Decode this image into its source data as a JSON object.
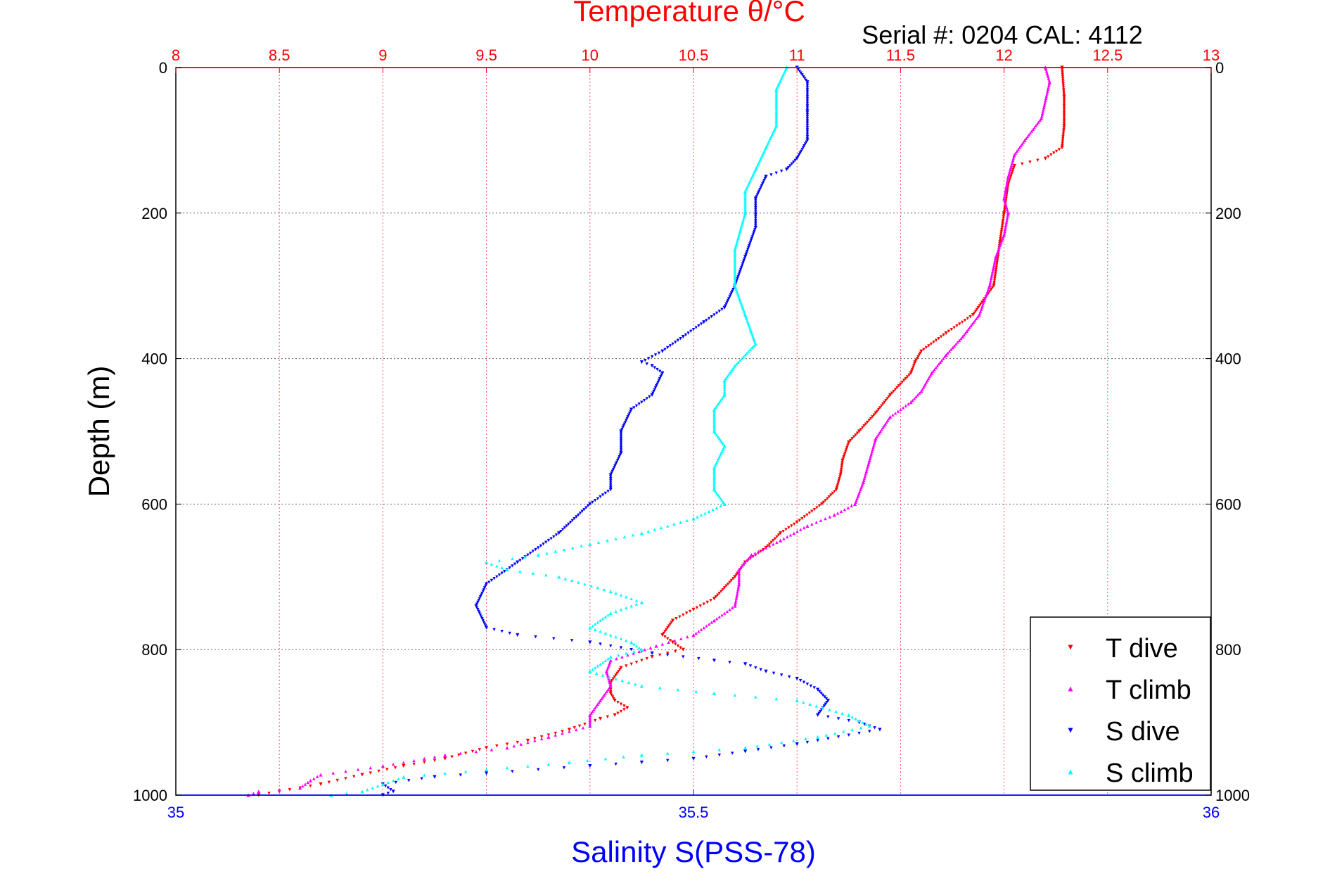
{
  "chart_data": {
    "type": "scatter",
    "title": "Temperature θ/°C",
    "annotation": "Serial #: 0204  CAL: 4112",
    "ylabel": "Depth (m)",
    "xlabel": "Salinity S(PSS-78)",
    "y_axis": {
      "range": [
        0,
        1000
      ],
      "reversed": true,
      "ticks": [
        "0",
        "200",
        "400",
        "600",
        "800",
        "1000"
      ],
      "tick_values": [
        0,
        200,
        400,
        600,
        800,
        1000
      ]
    },
    "x_axis_temperature": {
      "range": [
        8,
        13
      ],
      "position": "top",
      "ticks": [
        "8",
        "8.5",
        "9",
        "9.5",
        "10",
        "10.5",
        "11",
        "11.5",
        "12",
        "12.5",
        "13"
      ],
      "tick_values": [
        8,
        8.5,
        9,
        9.5,
        10,
        10.5,
        11,
        11.5,
        12,
        12.5,
        13
      ],
      "color": "#ff0000"
    },
    "x_axis_salinity": {
      "range": [
        35,
        36
      ],
      "position": "bottom",
      "ticks": [
        "35",
        "35.5",
        "36"
      ],
      "tick_values": [
        35,
        35.5,
        36
      ],
      "color": "#0000ff"
    },
    "grid": true,
    "legend_position": "bottom-right",
    "series": [
      {
        "name": "T dive",
        "color": "#ff0000",
        "axis": "temperature",
        "marker": "triangle-down",
        "points": [
          [
            12.28,
            0
          ],
          [
            12.29,
            40
          ],
          [
            12.29,
            80
          ],
          [
            12.28,
            110
          ],
          [
            12.2,
            125
          ],
          [
            12.05,
            135
          ],
          [
            12.02,
            160
          ],
          [
            12.0,
            200
          ],
          [
            11.98,
            240
          ],
          [
            11.97,
            260
          ],
          [
            11.95,
            300
          ],
          [
            11.85,
            340
          ],
          [
            11.72,
            365
          ],
          [
            11.6,
            390
          ],
          [
            11.57,
            405
          ],
          [
            11.55,
            420
          ],
          [
            11.45,
            450
          ],
          [
            11.38,
            475
          ],
          [
            11.3,
            500
          ],
          [
            11.25,
            515
          ],
          [
            11.22,
            540
          ],
          [
            11.21,
            560
          ],
          [
            11.19,
            580
          ],
          [
            11.12,
            600
          ],
          [
            11.0,
            625
          ],
          [
            10.92,
            640
          ],
          [
            10.85,
            660
          ],
          [
            10.75,
            680
          ],
          [
            10.7,
            700
          ],
          [
            10.6,
            730
          ],
          [
            10.5,
            745
          ],
          [
            10.4,
            760
          ],
          [
            10.35,
            780
          ],
          [
            10.4,
            790
          ],
          [
            10.45,
            800
          ],
          [
            10.3,
            810
          ],
          [
            10.15,
            825
          ],
          [
            10.1,
            845
          ],
          [
            10.1,
            860
          ],
          [
            10.12,
            870
          ],
          [
            10.18,
            880
          ],
          [
            10.12,
            890
          ],
          [
            10.05,
            895
          ],
          [
            9.9,
            910
          ],
          [
            9.7,
            925
          ],
          [
            9.5,
            935
          ],
          [
            9.3,
            950
          ],
          [
            9.1,
            960
          ],
          [
            8.9,
            972
          ],
          [
            8.7,
            985
          ],
          [
            8.5,
            995
          ],
          [
            8.4,
            1000
          ]
        ]
      },
      {
        "name": "T climb",
        "color": "#ff00ff",
        "axis": "temperature",
        "marker": "triangle-up",
        "points": [
          [
            12.2,
            0
          ],
          [
            12.22,
            20
          ],
          [
            12.18,
            70
          ],
          [
            12.1,
            100
          ],
          [
            12.05,
            120
          ],
          [
            12.02,
            150
          ],
          [
            12.0,
            180
          ],
          [
            12.02,
            200
          ],
          [
            12.0,
            230
          ],
          [
            11.96,
            260
          ],
          [
            11.93,
            300
          ],
          [
            11.88,
            340
          ],
          [
            11.8,
            370
          ],
          [
            11.72,
            395
          ],
          [
            11.65,
            420
          ],
          [
            11.6,
            445
          ],
          [
            11.55,
            460
          ],
          [
            11.45,
            480
          ],
          [
            11.38,
            510
          ],
          [
            11.35,
            540
          ],
          [
            11.32,
            570
          ],
          [
            11.28,
            600
          ],
          [
            11.18,
            615
          ],
          [
            11.05,
            630
          ],
          [
            10.92,
            650
          ],
          [
            10.78,
            670
          ],
          [
            10.72,
            690
          ],
          [
            10.72,
            710
          ],
          [
            10.7,
            740
          ],
          [
            10.6,
            760
          ],
          [
            10.5,
            780
          ],
          [
            10.32,
            795
          ],
          [
            10.1,
            815
          ],
          [
            10.08,
            830
          ],
          [
            10.1,
            850
          ],
          [
            10.05,
            870
          ],
          [
            10.0,
            890
          ],
          [
            10.0,
            905
          ],
          [
            9.8,
            920
          ],
          [
            9.6,
            935
          ],
          [
            9.3,
            945
          ],
          [
            9.2,
            950
          ],
          [
            9.0,
            960
          ],
          [
            8.7,
            972
          ],
          [
            8.65,
            980
          ],
          [
            8.6,
            990
          ],
          [
            8.4,
            995
          ],
          [
            8.35,
            1000
          ]
        ]
      },
      {
        "name": "S dive",
        "color": "#0000ff",
        "axis": "salinity",
        "marker": "triangle-down",
        "points": [
          [
            35.6,
            0
          ],
          [
            35.61,
            20
          ],
          [
            35.61,
            60
          ],
          [
            35.61,
            100
          ],
          [
            35.6,
            125
          ],
          [
            35.59,
            140
          ],
          [
            35.57,
            150
          ],
          [
            35.56,
            180
          ],
          [
            35.56,
            220
          ],
          [
            35.55,
            260
          ],
          [
            35.54,
            300
          ],
          [
            35.53,
            330
          ],
          [
            35.51,
            350
          ],
          [
            35.49,
            370
          ],
          [
            35.47,
            390
          ],
          [
            35.45,
            405
          ],
          [
            35.46,
            410
          ],
          [
            35.47,
            420
          ],
          [
            35.46,
            450
          ],
          [
            35.44,
            470
          ],
          [
            35.43,
            500
          ],
          [
            35.43,
            530
          ],
          [
            35.42,
            560
          ],
          [
            35.42,
            580
          ],
          [
            35.4,
            600
          ],
          [
            35.37,
            640
          ],
          [
            35.33,
            680
          ],
          [
            35.3,
            710
          ],
          [
            35.29,
            740
          ],
          [
            35.3,
            770
          ],
          [
            35.33,
            780
          ],
          [
            35.4,
            790
          ],
          [
            35.46,
            805
          ],
          [
            35.52,
            815
          ],
          [
            35.55,
            820
          ],
          [
            35.57,
            830
          ],
          [
            35.6,
            840
          ],
          [
            35.62,
            855
          ],
          [
            35.63,
            870
          ],
          [
            35.62,
            890
          ],
          [
            35.66,
            900
          ],
          [
            35.68,
            910
          ],
          [
            35.6,
            930
          ],
          [
            35.55,
            940
          ],
          [
            35.5,
            950
          ],
          [
            35.45,
            955
          ],
          [
            35.4,
            960
          ],
          [
            35.3,
            970
          ],
          [
            35.25,
            975
          ],
          [
            35.2,
            985
          ],
          [
            35.21,
            995
          ],
          [
            35.2,
            1000
          ]
        ]
      },
      {
        "name": "S climb",
        "color": "#00ffff",
        "axis": "salinity",
        "marker": "triangle-up",
        "points": [
          [
            35.59,
            0
          ],
          [
            35.58,
            30
          ],
          [
            35.58,
            80
          ],
          [
            35.57,
            110
          ],
          [
            35.56,
            140
          ],
          [
            35.55,
            170
          ],
          [
            35.55,
            200
          ],
          [
            35.54,
            250
          ],
          [
            35.54,
            300
          ],
          [
            35.55,
            340
          ],
          [
            35.56,
            380
          ],
          [
            35.54,
            410
          ],
          [
            35.53,
            430
          ],
          [
            35.53,
            450
          ],
          [
            35.52,
            470
          ],
          [
            35.52,
            500
          ],
          [
            35.53,
            520
          ],
          [
            35.52,
            550
          ],
          [
            35.52,
            580
          ],
          [
            35.53,
            600
          ],
          [
            35.5,
            620
          ],
          [
            35.45,
            640
          ],
          [
            35.4,
            655
          ],
          [
            35.35,
            670
          ],
          [
            35.3,
            680
          ],
          [
            35.32,
            690
          ],
          [
            35.37,
            700
          ],
          [
            35.42,
            720
          ],
          [
            35.45,
            735
          ],
          [
            35.42,
            750
          ],
          [
            35.4,
            770
          ],
          [
            35.44,
            790
          ],
          [
            35.45,
            800
          ],
          [
            35.42,
            810
          ],
          [
            35.4,
            830
          ],
          [
            35.45,
            850
          ],
          [
            35.52,
            860
          ],
          [
            35.6,
            870
          ],
          [
            35.65,
            890
          ],
          [
            35.67,
            905
          ],
          [
            35.62,
            920
          ],
          [
            35.55,
            935
          ],
          [
            35.45,
            945
          ],
          [
            35.38,
            955
          ],
          [
            35.3,
            965
          ],
          [
            35.22,
            975
          ],
          [
            35.2,
            985
          ],
          [
            35.18,
            995
          ],
          [
            35.15,
            1000
          ]
        ]
      }
    ]
  }
}
